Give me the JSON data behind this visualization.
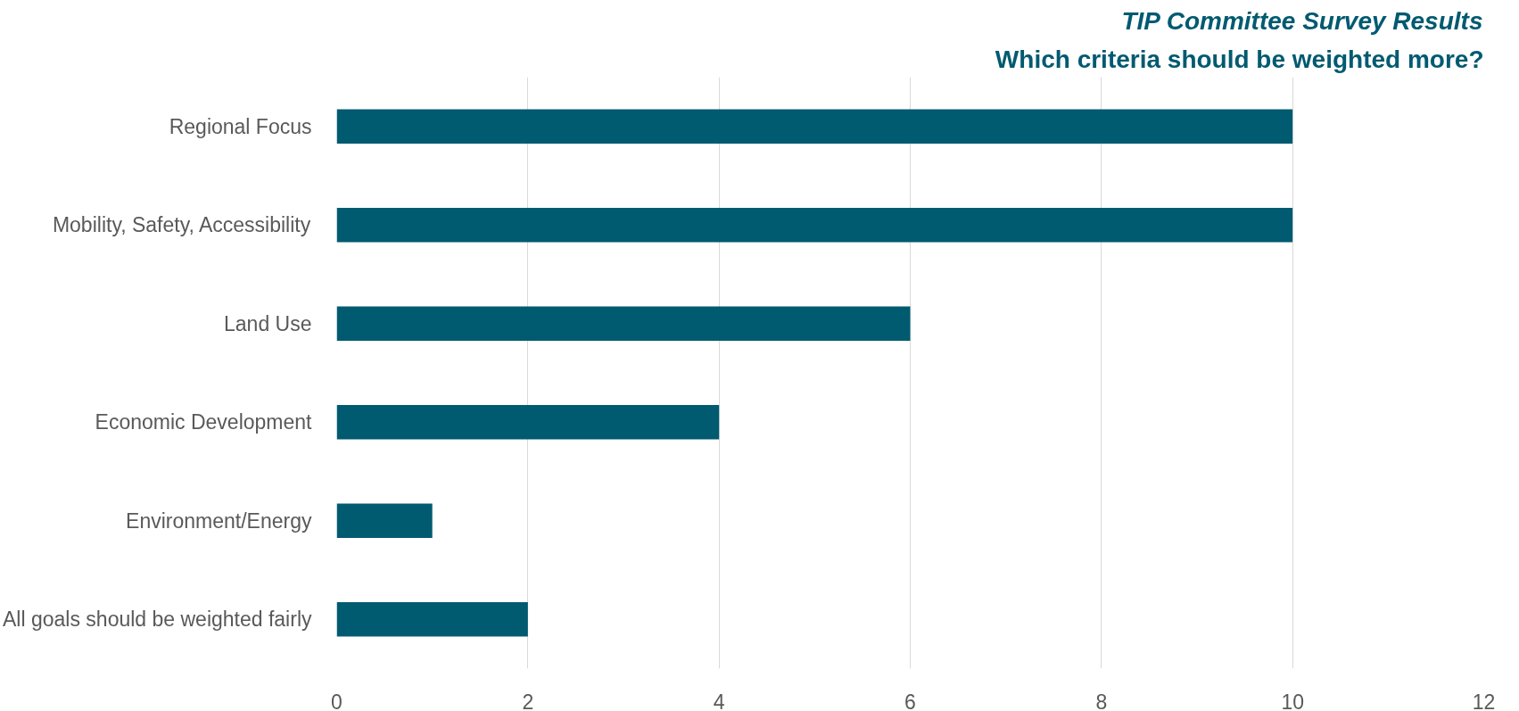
{
  "chart_data": {
    "type": "bar",
    "orientation": "horizontal",
    "title": "TIP Committee Survey Results",
    "subtitle": "Which criteria should be weighted more?",
    "categories": [
      "Regional Focus",
      "Mobility, Safety, Accessibility",
      "Land Use",
      "Economic Development",
      "Environment/Energy",
      "All goals should be weighted fairly"
    ],
    "values": [
      10,
      10,
      6,
      4,
      1,
      2
    ],
    "color": "#005a70",
    "xlim": [
      0,
      12
    ],
    "xticks": [
      0,
      2,
      4,
      6,
      8,
      10,
      12
    ],
    "grid": "x"
  }
}
